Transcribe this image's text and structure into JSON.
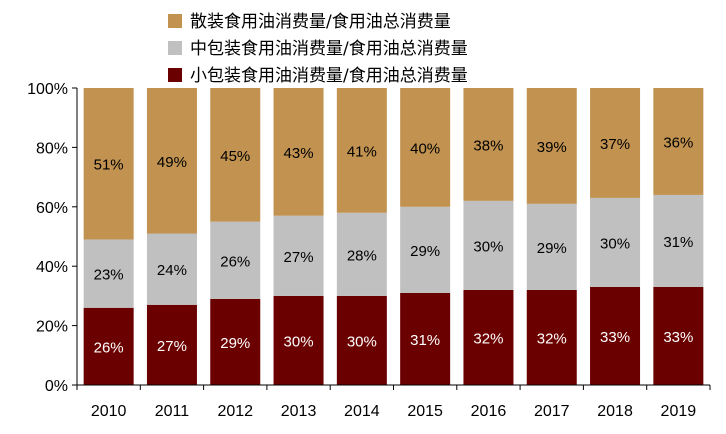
{
  "chart_data": {
    "type": "bar",
    "stacked": true,
    "categories": [
      "2010",
      "2011",
      "2012",
      "2013",
      "2014",
      "2015",
      "2016",
      "2017",
      "2018",
      "2019"
    ],
    "series": [
      {
        "name": "小包装食用油消费量/食用油总消费量",
        "color": "#6b0000",
        "label_color": "#ffffff",
        "values": [
          26,
          27,
          29,
          30,
          30,
          31,
          32,
          32,
          33,
          33
        ],
        "labels": [
          "26%",
          "27%",
          "29%",
          "30%",
          "30%",
          "31%",
          "32%",
          "32%",
          "33%",
          "33%"
        ]
      },
      {
        "name": "中包装食用油消费量/食用油总消费量",
        "color": "#c0c0c0",
        "label_color": "#000000",
        "values": [
          23,
          24,
          26,
          27,
          28,
          29,
          30,
          29,
          30,
          31
        ],
        "labels": [
          "23%",
          "24%",
          "26%",
          "27%",
          "28%",
          "29%",
          "30%",
          "29%",
          "30%",
          "31%"
        ]
      },
      {
        "name": "散装食用油消费量/食用油总消费量",
        "color": "#c19250",
        "label_color": "#000000",
        "values": [
          51,
          49,
          45,
          43,
          41,
          40,
          38,
          39,
          37,
          36
        ],
        "labels": [
          "51%",
          "49%",
          "45%",
          "43%",
          "41%",
          "40%",
          "38%",
          "39%",
          "37%",
          "36%"
        ]
      }
    ],
    "legend_order": [
      2,
      1,
      0
    ],
    "legend_position": "top",
    "y_ticks": [
      0,
      20,
      40,
      60,
      80,
      100
    ],
    "y_tick_labels": [
      "0%",
      "20%",
      "40%",
      "60%",
      "80%",
      "100%"
    ],
    "ylim": [
      0,
      100
    ],
    "grid": false,
    "title": "",
    "xlabel": "",
    "ylabel": ""
  }
}
